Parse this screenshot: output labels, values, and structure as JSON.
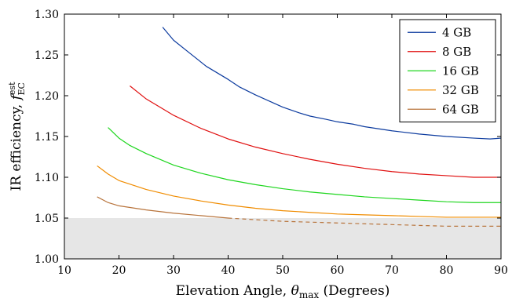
{
  "chart_data": {
    "type": "line",
    "xlabel": {
      "prefix": "Elevation Angle, ",
      "symbol": "θ",
      "sub": "max",
      "suffix": " (Degrees)"
    },
    "ylabel": {
      "prefix": "IR efficiency, ",
      "symbol": "f",
      "sup": "est",
      "sub": "EC"
    },
    "xlim": [
      10,
      90
    ],
    "ylim": [
      1.0,
      1.3
    ],
    "x_ticks": [
      "10",
      "20",
      "30",
      "40",
      "50",
      "60",
      "70",
      "80",
      "90"
    ],
    "x_tick_values": [
      10,
      20,
      30,
      40,
      50,
      60,
      70,
      80,
      90
    ],
    "y_ticks": [
      "1.00",
      "1.05",
      "1.10",
      "1.15",
      "1.20",
      "1.25",
      "1.30"
    ],
    "y_tick_values": [
      1.0,
      1.05,
      1.1,
      1.15,
      1.2,
      1.25,
      1.3
    ],
    "shaded_region": {
      "y_from": 1.0,
      "y_to": 1.05,
      "color": "#e6e6e6"
    },
    "legend_position": "top-right",
    "grid": false,
    "series": [
      {
        "name": "4 GB",
        "color": "#0b3a9e",
        "x": [
          28,
          30,
          33,
          36,
          40,
          42,
          45,
          48,
          50,
          53,
          55,
          58,
          60,
          63,
          65,
          70,
          75,
          80,
          85,
          88,
          90
        ],
        "y": [
          1.284,
          1.268,
          1.252,
          1.236,
          1.22,
          1.211,
          1.201,
          1.192,
          1.186,
          1.179,
          1.175,
          1.171,
          1.168,
          1.165,
          1.162,
          1.157,
          1.153,
          1.15,
          1.148,
          1.147,
          1.148
        ]
      },
      {
        "name": "8 GB",
        "color": "#e01010",
        "x": [
          22,
          25,
          28,
          30,
          35,
          40,
          45,
          50,
          55,
          60,
          65,
          70,
          75,
          80,
          85,
          90
        ],
        "y": [
          1.212,
          1.196,
          1.184,
          1.176,
          1.16,
          1.147,
          1.137,
          1.129,
          1.122,
          1.116,
          1.111,
          1.107,
          1.104,
          1.102,
          1.1,
          1.1
        ]
      },
      {
        "name": "16 GB",
        "color": "#1ed61e",
        "x": [
          18,
          20,
          22,
          25,
          30,
          35,
          40,
          45,
          50,
          55,
          60,
          65,
          70,
          75,
          80,
          85,
          90
        ],
        "y": [
          1.161,
          1.148,
          1.139,
          1.129,
          1.115,
          1.105,
          1.097,
          1.091,
          1.086,
          1.082,
          1.079,
          1.076,
          1.074,
          1.072,
          1.07,
          1.069,
          1.069
        ]
      },
      {
        "name": "32 GB",
        "color": "#f08c00",
        "x": [
          16,
          18,
          20,
          25,
          30,
          35,
          40,
          45,
          50,
          55,
          60,
          65,
          70,
          75,
          80,
          85,
          90
        ],
        "y": [
          1.114,
          1.104,
          1.096,
          1.085,
          1.077,
          1.071,
          1.066,
          1.062,
          1.059,
          1.057,
          1.055,
          1.054,
          1.053,
          1.052,
          1.051,
          1.051,
          1.051
        ]
      },
      {
        "name": "64 GB",
        "color": "#b8743c",
        "x": [
          16,
          18,
          20,
          25,
          30,
          35,
          40,
          45,
          50,
          55,
          60,
          65,
          70,
          75,
          80,
          85,
          90
        ],
        "y": [
          1.076,
          1.069,
          1.065,
          1.06,
          1.056,
          1.053,
          1.05,
          1.048,
          1.046,
          1.045,
          1.044,
          1.043,
          1.042,
          1.041,
          1.04,
          1.04,
          1.04
        ],
        "dashed_below": 1.05
      }
    ]
  }
}
